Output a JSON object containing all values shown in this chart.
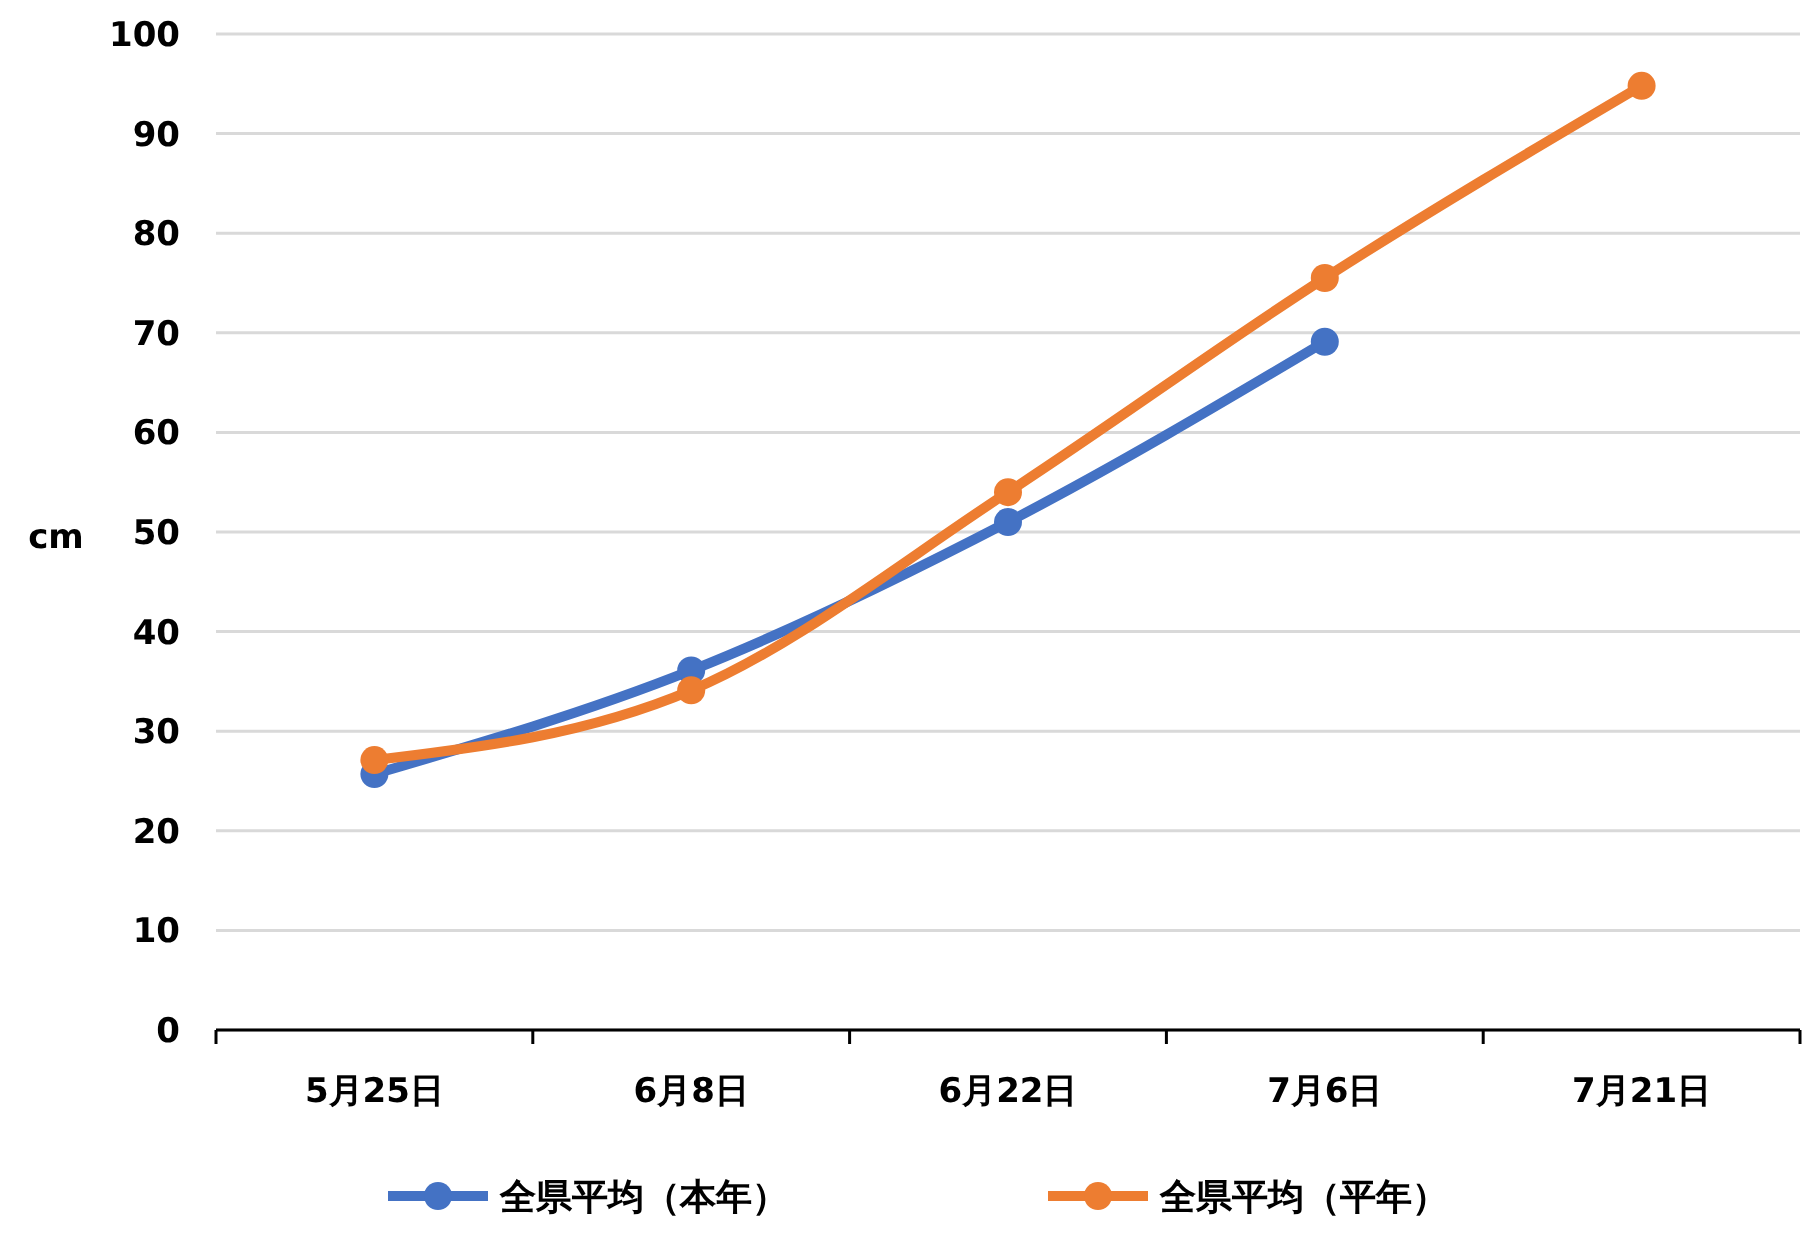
{
  "chart_data": {
    "type": "line",
    "ylabel": "cm",
    "categories": [
      "5月25日",
      "6月8日",
      "6月22日",
      "7月6日",
      "7月21日"
    ],
    "series": [
      {
        "name": "全県平均（本年）",
        "color": "#4472c4",
        "values": [
          25.7,
          36.1,
          51,
          69.1,
          null
        ]
      },
      {
        "name": "全県平均（平年）",
        "color": "#ed7d31",
        "values": [
          27.1,
          34.1,
          54,
          75.5,
          94.8
        ]
      }
    ],
    "ylim": [
      0,
      100
    ],
    "yticks": [
      0,
      10,
      20,
      30,
      40,
      50,
      60,
      70,
      80,
      90,
      100
    ],
    "grid": "y",
    "legend": "bottom",
    "marker": "circle"
  }
}
